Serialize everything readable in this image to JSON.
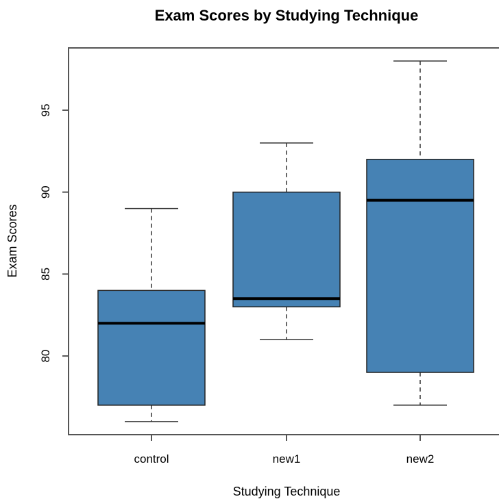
{
  "chart_data": {
    "type": "boxplot",
    "title": "Exam Scores by Studying Technique",
    "xlabel": "Studying Technique",
    "ylabel": "Exam Scores",
    "categories": [
      "control",
      "new1",
      "new2"
    ],
    "boxes": [
      {
        "category": "control",
        "whisker_low": 76,
        "q1": 77,
        "median": 82,
        "q3": 84,
        "whisker_high": 89
      },
      {
        "category": "new1",
        "whisker_low": 81,
        "q1": 83,
        "median": 83.5,
        "q3": 90,
        "whisker_high": 93
      },
      {
        "category": "new2",
        "whisker_low": 77,
        "q1": 79,
        "median": 89.5,
        "q3": 92,
        "whisker_high": 98
      }
    ],
    "yticks": [
      80,
      85,
      90,
      95
    ],
    "ylim": [
      75.2,
      98.8
    ],
    "box_fill": "#4682b4",
    "grid": false
  }
}
